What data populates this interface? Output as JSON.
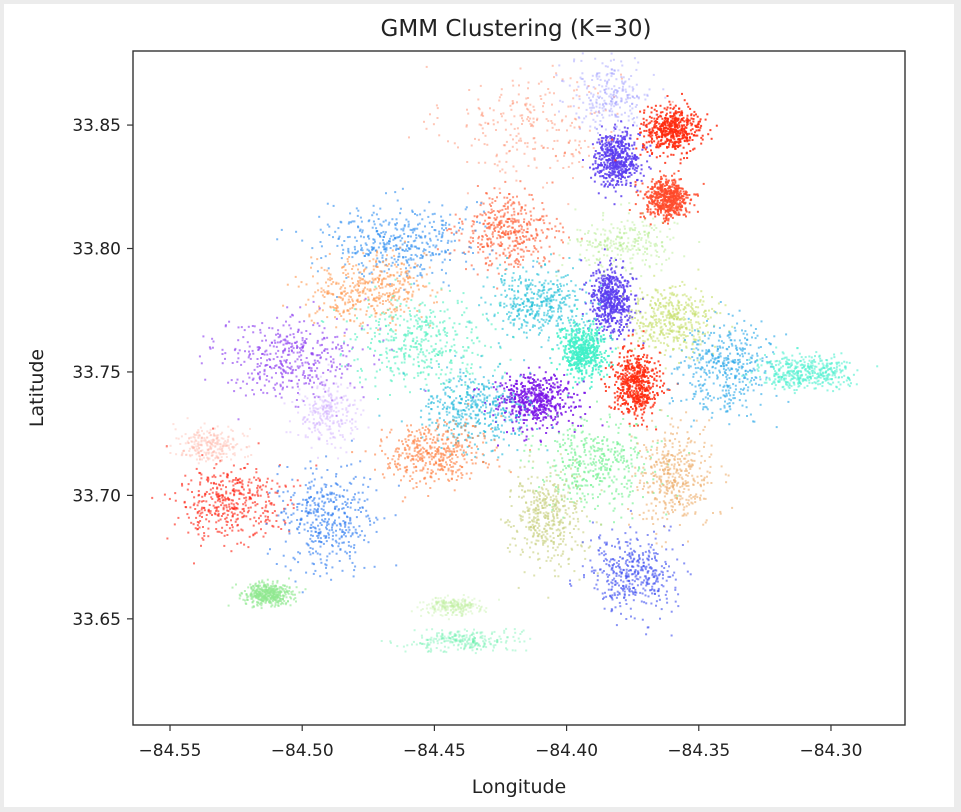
{
  "chart_data": {
    "type": "scatter",
    "title": "GMM Clustering (K=30)",
    "xlabel": "Longitude",
    "ylabel": "Latitude",
    "xlim": [
      -84.564,
      -84.272
    ],
    "ylim": [
      33.607,
      33.88
    ],
    "xticks": [
      -84.55,
      -84.5,
      -84.45,
      -84.4,
      -84.35,
      -84.3
    ],
    "xtick_labels": [
      "−84.55",
      "−84.50",
      "−84.45",
      "−84.40",
      "−84.35",
      "−84.30"
    ],
    "yticks": [
      33.65,
      33.7,
      33.75,
      33.8,
      33.85
    ],
    "ytick_labels": [
      "33.65",
      "33.70",
      "33.75",
      "33.80",
      "33.85"
    ],
    "grid": false,
    "legend": "none",
    "clusters": [
      {
        "color": "#ff6a40",
        "center": [
          -84.413,
          33.85
        ],
        "spread": [
          0.03,
          0.022
        ],
        "density": "sparse"
      },
      {
        "color": "#8a86ff",
        "center": [
          -84.383,
          33.862
        ],
        "spread": [
          0.014,
          0.014
        ],
        "density": "sparse"
      },
      {
        "color": "#5a3cf0",
        "center": [
          -84.381,
          33.836
        ],
        "spread": [
          0.008,
          0.01
        ],
        "density": "dense"
      },
      {
        "color": "#ff2a0e",
        "center": [
          -84.36,
          33.848
        ],
        "spread": [
          0.01,
          0.008
        ],
        "density": "dense"
      },
      {
        "color": "#ff4a2a",
        "center": [
          -84.362,
          33.82
        ],
        "spread": [
          0.008,
          0.008
        ],
        "density": "dense"
      },
      {
        "color": "#ff5a30",
        "center": [
          -84.422,
          33.807
        ],
        "spread": [
          0.016,
          0.013
        ],
        "density": "medium"
      },
      {
        "color": "#2e8ef0",
        "center": [
          -84.464,
          33.803
        ],
        "spread": [
          0.025,
          0.014
        ],
        "density": "medium"
      },
      {
        "color": "#ff9a50",
        "center": [
          -84.475,
          33.783
        ],
        "spread": [
          0.02,
          0.012
        ],
        "density": "medium"
      },
      {
        "color": "#52f0c0",
        "center": [
          -84.455,
          33.763
        ],
        "spread": [
          0.024,
          0.016
        ],
        "density": "medium"
      },
      {
        "color": "#20c0d8",
        "center": [
          -84.41,
          33.778
        ],
        "spread": [
          0.018,
          0.012
        ],
        "density": "medium"
      },
      {
        "color": "#5a3cf0",
        "center": [
          -84.383,
          33.779
        ],
        "spread": [
          0.007,
          0.012
        ],
        "density": "dense"
      },
      {
        "color": "#a0e870",
        "center": [
          -84.378,
          33.802
        ],
        "spread": [
          0.018,
          0.01
        ],
        "density": "sparse"
      },
      {
        "color": "#c8e070",
        "center": [
          -84.36,
          33.771
        ],
        "spread": [
          0.014,
          0.012
        ],
        "density": "medium"
      },
      {
        "color": "#40f0c8",
        "center": [
          -84.394,
          33.758
        ],
        "spread": [
          0.008,
          0.01
        ],
        "density": "dense"
      },
      {
        "color": "#ff2a0e",
        "center": [
          -84.374,
          33.745
        ],
        "spread": [
          0.008,
          0.012
        ],
        "density": "dense"
      },
      {
        "color": "#28a8e8",
        "center": [
          -84.34,
          33.752
        ],
        "spread": [
          0.016,
          0.016
        ],
        "density": "medium"
      },
      {
        "color": "#50f0d0",
        "center": [
          -84.31,
          33.75
        ],
        "spread": [
          0.016,
          0.006
        ],
        "density": "medium"
      },
      {
        "color": "#7a14e8",
        "center": [
          -84.412,
          33.738
        ],
        "spread": [
          0.014,
          0.01
        ],
        "density": "dense"
      },
      {
        "color": "#20b8dc",
        "center": [
          -84.436,
          33.735
        ],
        "spread": [
          0.018,
          0.014
        ],
        "density": "medium"
      },
      {
        "color": "#8a3cf0",
        "center": [
          -84.505,
          33.755
        ],
        "spread": [
          0.025,
          0.015
        ],
        "density": "medium"
      },
      {
        "color": "#c8a0ff",
        "center": [
          -84.491,
          33.733
        ],
        "spread": [
          0.01,
          0.012
        ],
        "density": "sparse"
      },
      {
        "color": "#ff8040",
        "center": [
          -84.451,
          33.717
        ],
        "spread": [
          0.018,
          0.012
        ],
        "density": "medium"
      },
      {
        "color": "#70f090",
        "center": [
          -84.39,
          33.713
        ],
        "spread": [
          0.02,
          0.016
        ],
        "density": "medium"
      },
      {
        "color": "#eeb070",
        "center": [
          -84.359,
          33.707
        ],
        "spread": [
          0.013,
          0.018
        ],
        "density": "medium"
      },
      {
        "color": "#c8d080",
        "center": [
          -84.407,
          33.69
        ],
        "spread": [
          0.013,
          0.018
        ],
        "density": "medium"
      },
      {
        "color": "#4050f0",
        "center": [
          -84.375,
          33.668
        ],
        "spread": [
          0.015,
          0.014
        ],
        "density": "medium"
      },
      {
        "color": "#ff2010",
        "center": [
          -84.527,
          33.697
        ],
        "spread": [
          0.018,
          0.014
        ],
        "density": "medium"
      },
      {
        "color": "#ffb0a0",
        "center": [
          -84.535,
          33.72
        ],
        "spread": [
          0.012,
          0.006
        ],
        "density": "sparse"
      },
      {
        "color": "#2e7cf0",
        "center": [
          -84.491,
          33.691
        ],
        "spread": [
          0.016,
          0.018
        ],
        "density": "medium"
      },
      {
        "color": "#90e890",
        "center": [
          -84.513,
          33.66
        ],
        "spread": [
          0.008,
          0.004
        ],
        "density": "medium"
      },
      {
        "color": "#60f0a8",
        "center": [
          -84.44,
          33.641
        ],
        "spread": [
          0.018,
          0.004
        ],
        "density": "sparse"
      },
      {
        "color": "#c0f0a0",
        "center": [
          -84.443,
          33.655
        ],
        "spread": [
          0.01,
          0.003
        ],
        "density": "sparse"
      }
    ]
  }
}
